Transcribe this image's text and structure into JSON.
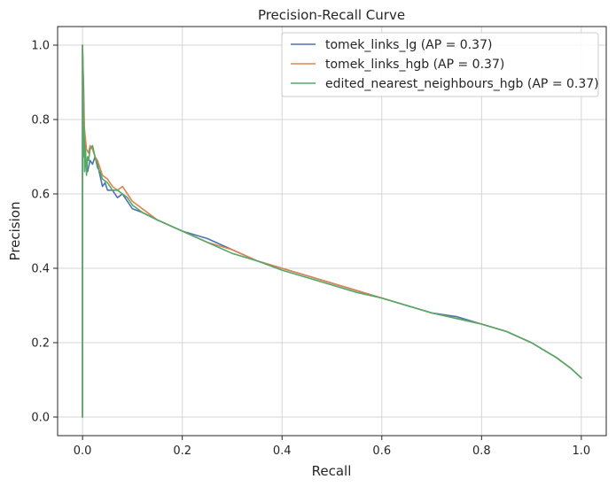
{
  "chart_data": {
    "type": "line",
    "title": "Precision-Recall Curve",
    "xlabel": "Recall",
    "ylabel": "Precision",
    "xlim": [
      -0.05,
      1.05
    ],
    "ylim": [
      -0.05,
      1.05
    ],
    "xticks": [
      0.0,
      0.2,
      0.4,
      0.6,
      0.8,
      1.0
    ],
    "yticks": [
      0.0,
      0.2,
      0.4,
      0.6,
      0.8,
      1.0
    ],
    "xtick_labels": [
      "0.0",
      "0.2",
      "0.4",
      "0.6",
      "0.8",
      "1.0"
    ],
    "ytick_labels": [
      "0.0",
      "0.2",
      "0.4",
      "0.6",
      "0.8",
      "1.0"
    ],
    "grid": true,
    "legend_position": "top-right",
    "series": [
      {
        "name": "tomek_links_lg (AP = 0.37)",
        "color": "#4c72b0",
        "x": [
          0,
          0.0,
          0.0,
          0.002,
          0.003,
          0.004,
          0.005,
          0.007,
          0.01,
          0.015,
          0.02,
          0.025,
          0.03,
          0.035,
          0.04,
          0.045,
          0.05,
          0.06,
          0.07,
          0.08,
          0.09,
          0.1,
          0.12,
          0.15,
          0.2,
          0.25,
          0.3,
          0.35,
          0.4,
          0.45,
          0.5,
          0.55,
          0.6,
          0.65,
          0.7,
          0.75,
          0.8,
          0.85,
          0.9,
          0.95,
          0.98,
          1.0
        ],
        "y": [
          0.0,
          0.33,
          1.0,
          0.89,
          0.82,
          0.75,
          0.71,
          0.68,
          0.66,
          0.69,
          0.68,
          0.7,
          0.68,
          0.65,
          0.62,
          0.63,
          0.61,
          0.61,
          0.59,
          0.6,
          0.58,
          0.56,
          0.55,
          0.53,
          0.5,
          0.48,
          0.45,
          0.42,
          0.4,
          0.38,
          0.36,
          0.34,
          0.32,
          0.3,
          0.28,
          0.27,
          0.25,
          0.23,
          0.2,
          0.16,
          0.13,
          0.105
        ]
      },
      {
        "name": "tomek_links_hgb (AP = 0.37)",
        "color": "#dd8452",
        "x": [
          0,
          0.0,
          0.0,
          0.002,
          0.003,
          0.005,
          0.008,
          0.012,
          0.015,
          0.02,
          0.025,
          0.03,
          0.035,
          0.04,
          0.05,
          0.06,
          0.07,
          0.08,
          0.09,
          0.1,
          0.12,
          0.15,
          0.2,
          0.25,
          0.3,
          0.35,
          0.4,
          0.45,
          0.5,
          0.55,
          0.6,
          0.65,
          0.7,
          0.75,
          0.8,
          0.85,
          0.9,
          0.95,
          0.98,
          1.0
        ],
        "y": [
          0.0,
          0.33,
          1.0,
          0.84,
          0.79,
          0.76,
          0.72,
          0.71,
          0.73,
          0.72,
          0.7,
          0.69,
          0.67,
          0.65,
          0.64,
          0.62,
          0.61,
          0.62,
          0.6,
          0.58,
          0.56,
          0.53,
          0.5,
          0.47,
          0.45,
          0.42,
          0.4,
          0.38,
          0.36,
          0.34,
          0.32,
          0.3,
          0.28,
          0.265,
          0.25,
          0.23,
          0.2,
          0.16,
          0.13,
          0.105
        ]
      },
      {
        "name": "edited_nearest_neighbours_hgb (AP = 0.37)",
        "color": "#55a868",
        "x": [
          0,
          0.0,
          0.0,
          0.002,
          0.003,
          0.004,
          0.006,
          0.008,
          0.01,
          0.012,
          0.015,
          0.02,
          0.025,
          0.03,
          0.035,
          0.04,
          0.05,
          0.06,
          0.07,
          0.08,
          0.09,
          0.1,
          0.12,
          0.15,
          0.2,
          0.25,
          0.3,
          0.35,
          0.4,
          0.45,
          0.5,
          0.55,
          0.6,
          0.65,
          0.7,
          0.75,
          0.8,
          0.85,
          0.9,
          0.95,
          0.98,
          1.0
        ],
        "y": [
          0.0,
          0.33,
          1.0,
          0.7,
          0.78,
          0.66,
          0.72,
          0.65,
          0.7,
          0.69,
          0.72,
          0.73,
          0.7,
          0.67,
          0.66,
          0.64,
          0.63,
          0.61,
          0.61,
          0.6,
          0.59,
          0.57,
          0.55,
          0.53,
          0.5,
          0.47,
          0.44,
          0.42,
          0.395,
          0.375,
          0.355,
          0.335,
          0.32,
          0.3,
          0.28,
          0.265,
          0.25,
          0.23,
          0.2,
          0.16,
          0.13,
          0.105
        ]
      }
    ]
  }
}
